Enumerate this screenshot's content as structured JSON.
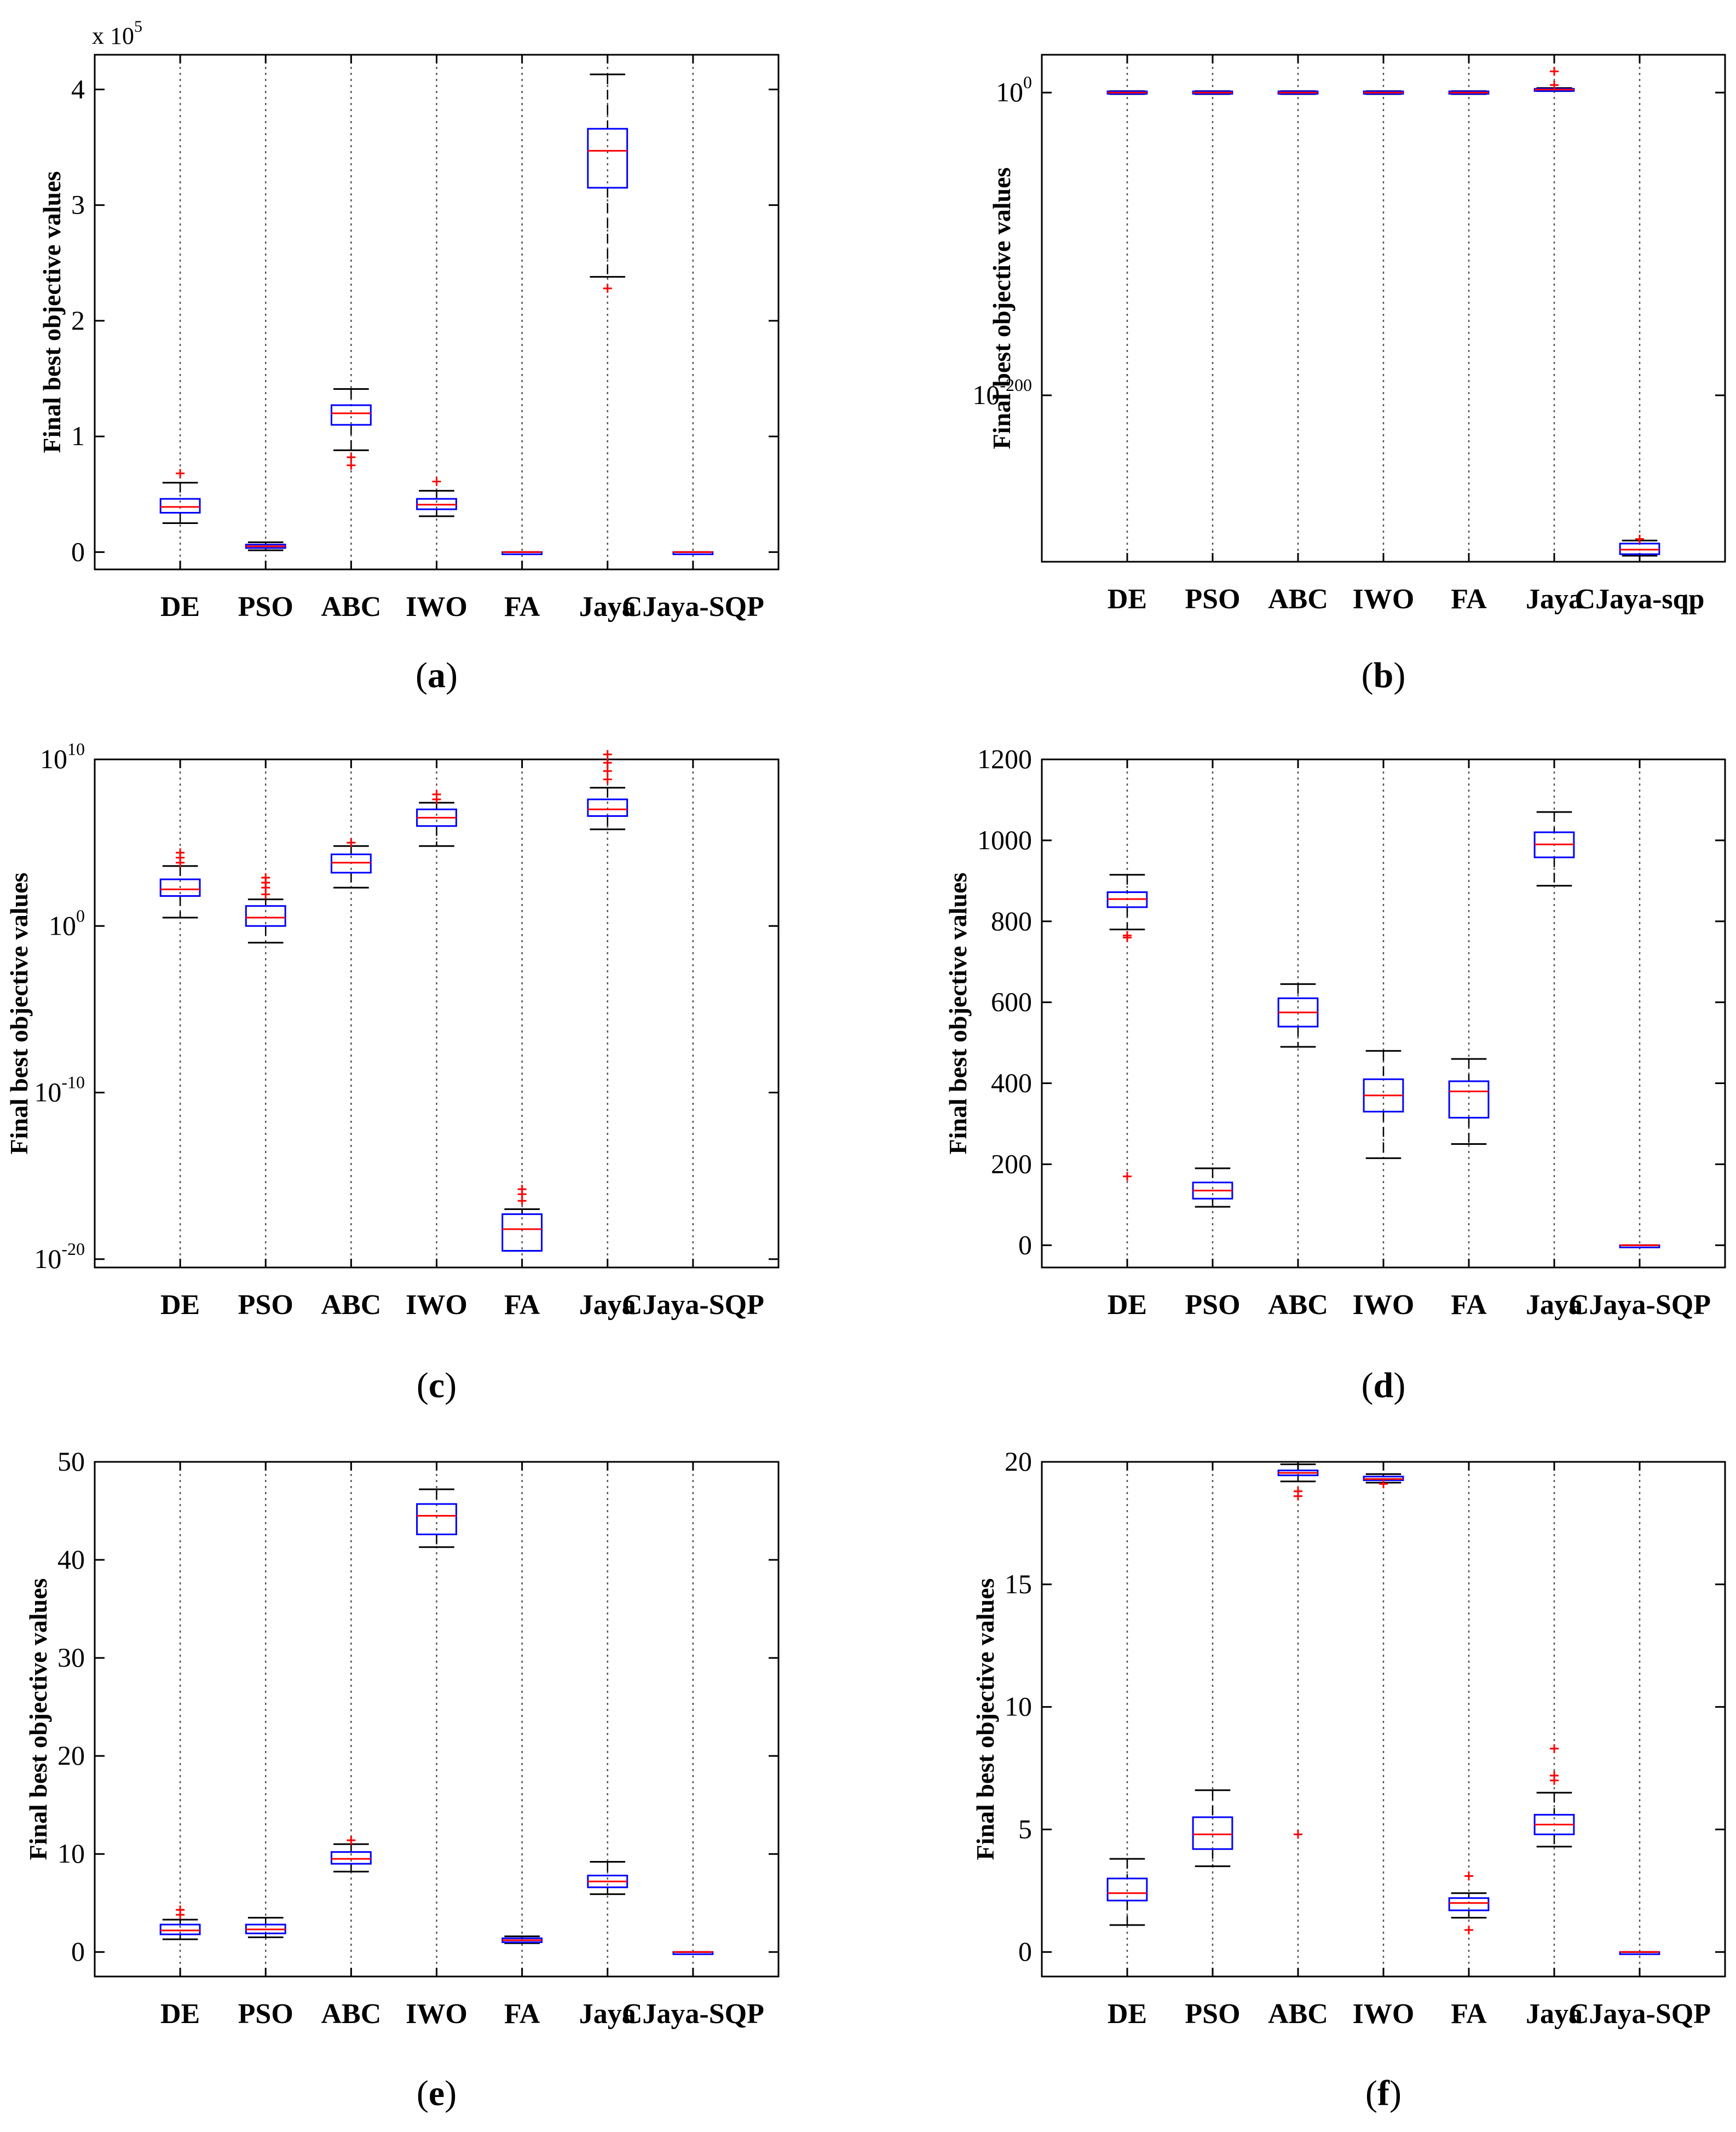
{
  "figure": {
    "colors": {
      "box": "#0000ff",
      "median": "#ff0000",
      "whisker": "#000000",
      "outlier": "#ff0000",
      "grid": "#555555",
      "axes": "#000000"
    }
  },
  "chart_data": [
    {
      "panel": "a",
      "panel_label": "(a)",
      "type": "box",
      "ylabel": "Final best objective values",
      "scale": "linear",
      "ylim": [
        -15000,
        430000
      ],
      "yticks": [
        0,
        100000,
        200000,
        300000,
        400000
      ],
      "ytick_labels": [
        "0",
        "1",
        "2",
        "3",
        "4"
      ],
      "multiplier_base": "x 10",
      "multiplier_exp": "5",
      "categories": [
        "DE",
        "PSO",
        "ABC",
        "IWO",
        "FA",
        "Jaya",
        "CJaya-SQP"
      ],
      "boxes": [
        {
          "low": 25000,
          "q1": 34000,
          "median": 39000,
          "q3": 46000,
          "high": 60000,
          "outliers": [
            68000
          ]
        },
        {
          "low": 1500,
          "q1": 3500,
          "median": 5000,
          "q3": 6500,
          "high": 8500,
          "outliers": []
        },
        {
          "low": 88000,
          "q1": 110000,
          "median": 120000,
          "q3": 127000,
          "high": 141000,
          "outliers": [
            75000,
            82000
          ]
        },
        {
          "low": 31000,
          "q1": 37000,
          "median": 41000,
          "q3": 46000,
          "high": 53000,
          "outliers": [
            61000
          ]
        },
        {
          "low": 0,
          "q1": 0,
          "median": 0,
          "q3": 0,
          "high": 0,
          "outliers": []
        },
        {
          "low": 238000,
          "q1": 315000,
          "median": 347000,
          "q3": 366000,
          "high": 413000,
          "outliers": [
            228000
          ]
        },
        {
          "low": 0,
          "q1": 0,
          "median": 0,
          "q3": 0,
          "high": 0,
          "outliers": []
        }
      ]
    },
    {
      "panel": "b",
      "panel_label": "(b)",
      "type": "box",
      "ylabel": "Final best objective values",
      "scale": "log10",
      "ylim": [
        -310,
        25
      ],
      "yticks": [
        0,
        -200
      ],
      "ytick_labels": [
        "10^0",
        "10^-200"
      ],
      "categories": [
        "DE",
        "PSO",
        "ABC",
        "IWO",
        "FA",
        "Jaya",
        "CJaya-sqp"
      ],
      "boxes": [
        {
          "low": -1,
          "q1": -0.8,
          "median": 0,
          "q3": 0.8,
          "high": 1,
          "outliers": []
        },
        {
          "low": -1,
          "q1": -0.8,
          "median": 0,
          "q3": 0.8,
          "high": 1,
          "outliers": []
        },
        {
          "low": -1,
          "q1": -0.8,
          "median": 0,
          "q3": 0.8,
          "high": 1,
          "outliers": []
        },
        {
          "low": -1,
          "q1": -0.8,
          "median": 0,
          "q3": 0.8,
          "high": 1,
          "outliers": []
        },
        {
          "low": -1,
          "q1": -0.8,
          "median": 0,
          "q3": 0.8,
          "high": 1,
          "outliers": []
        },
        {
          "low": 1,
          "q1": 1.5,
          "median": 2,
          "q3": 2.5,
          "high": 3,
          "outliers": [
            5,
            14
          ]
        },
        {
          "low": -306,
          "q1": -305,
          "median": -302,
          "q3": -298,
          "high": -296,
          "outliers": [
            -295
          ]
        }
      ]
    },
    {
      "panel": "c",
      "panel_label": "(c)",
      "type": "box",
      "ylabel": "Final best objective values",
      "scale": "log10",
      "ylim": [
        -20.5,
        10
      ],
      "yticks": [
        10,
        0,
        -10,
        -20
      ],
      "ytick_labels": [
        "10^10",
        "10^0",
        "10^-10",
        "10^-20"
      ],
      "categories": [
        "DE",
        "PSO",
        "ABC",
        "IWO",
        "FA",
        "Jaya",
        "CJaya-SQP"
      ],
      "boxes": [
        {
          "low": 0.5,
          "q1": 1.8,
          "median": 2.2,
          "q3": 2.8,
          "high": 3.6,
          "outliers": [
            3.8,
            4.1,
            4.4
          ]
        },
        {
          "low": -1,
          "q1": 0,
          "median": 0.5,
          "q3": 1.2,
          "high": 1.6,
          "outliers": [
            1.9,
            2.3,
            2.6,
            2.9
          ]
        },
        {
          "low": 2.3,
          "q1": 3.2,
          "median": 3.8,
          "q3": 4.3,
          "high": 4.8,
          "outliers": [
            5.0
          ]
        },
        {
          "low": 4.8,
          "q1": 6.0,
          "median": 6.5,
          "q3": 7.0,
          "high": 7.4,
          "outliers": [
            7.6,
            7.9
          ]
        },
        {
          "low": -19.5,
          "q1": -19.5,
          "median": -18.2,
          "q3": -17.3,
          "high": -17.0,
          "outliers": [
            -16.5,
            -16.1,
            -15.8
          ]
        },
        {
          "low": 5.8,
          "q1": 6.6,
          "median": 7.0,
          "q3": 7.6,
          "high": 8.3,
          "outliers": [
            8.8,
            9.3,
            9.8,
            10.3
          ]
        },
        {
          "low": null,
          "q1": null,
          "median": null,
          "q3": null,
          "high": null,
          "outliers": []
        }
      ]
    },
    {
      "panel": "d",
      "panel_label": "(d)",
      "type": "box",
      "ylabel": "Final best objective values",
      "scale": "linear",
      "ylim": [
        -55,
        1200
      ],
      "yticks": [
        0,
        200,
        400,
        600,
        800,
        1000,
        1200
      ],
      "ytick_labels": [
        "0",
        "200",
        "400",
        "600",
        "800",
        "1000",
        "1200"
      ],
      "categories": [
        "DE",
        "PSO",
        "ABC",
        "IWO",
        "FA",
        "Jaya",
        "CJaya-SQP"
      ],
      "boxes": [
        {
          "low": 780,
          "q1": 835,
          "median": 855,
          "q3": 872,
          "high": 915,
          "outliers": [
            760,
            765,
            170
          ]
        },
        {
          "low": 95,
          "q1": 115,
          "median": 135,
          "q3": 155,
          "high": 190,
          "outliers": []
        },
        {
          "low": 490,
          "q1": 540,
          "median": 575,
          "q3": 610,
          "high": 645,
          "outliers": []
        },
        {
          "low": 215,
          "q1": 330,
          "median": 370,
          "q3": 410,
          "high": 480,
          "outliers": []
        },
        {
          "low": 250,
          "q1": 315,
          "median": 380,
          "q3": 405,
          "high": 460,
          "outliers": []
        },
        {
          "low": 888,
          "q1": 958,
          "median": 990,
          "q3": 1020,
          "high": 1070,
          "outliers": []
        },
        {
          "low": 0,
          "q1": 0,
          "median": 0,
          "q3": 0,
          "high": 0,
          "outliers": []
        }
      ]
    },
    {
      "panel": "e",
      "panel_label": "(e)",
      "type": "box",
      "ylabel": "Final best objective values",
      "scale": "linear",
      "ylim": [
        -2.5,
        50
      ],
      "yticks": [
        0,
        10,
        20,
        30,
        40,
        50
      ],
      "ytick_labels": [
        "0",
        "10",
        "20",
        "30",
        "40",
        "50"
      ],
      "categories": [
        "DE",
        "PSO",
        "ABC",
        "IWO",
        "FA",
        "Jaya",
        "CJaya-SQP"
      ],
      "boxes": [
        {
          "low": 1.3,
          "q1": 1.8,
          "median": 2.2,
          "q3": 2.8,
          "high": 3.3,
          "outliers": [
            3.8,
            4.3
          ]
        },
        {
          "low": 1.5,
          "q1": 1.9,
          "median": 2.3,
          "q3": 2.8,
          "high": 3.5,
          "outliers": []
        },
        {
          "low": 8.2,
          "q1": 9.0,
          "median": 9.5,
          "q3": 10.2,
          "high": 11.0,
          "outliers": [
            11.4
          ]
        },
        {
          "low": 41.3,
          "q1": 42.6,
          "median": 44.5,
          "q3": 45.7,
          "high": 47.2,
          "outliers": []
        },
        {
          "low": 0.9,
          "q1": 1.0,
          "median": 1.2,
          "q3": 1.4,
          "high": 1.6,
          "outliers": []
        },
        {
          "low": 5.9,
          "q1": 6.6,
          "median": 7.2,
          "q3": 7.8,
          "high": 9.2,
          "outliers": []
        },
        {
          "low": 0,
          "q1": 0,
          "median": 0,
          "q3": 0,
          "high": 0,
          "outliers": []
        }
      ]
    },
    {
      "panel": "f",
      "panel_label": "(f)",
      "type": "box",
      "ylabel": "Final best objective values",
      "scale": "linear",
      "ylim": [
        -1,
        20
      ],
      "yticks": [
        0,
        5,
        10,
        15,
        20
      ],
      "ytick_labels": [
        "0",
        "5",
        "10",
        "15",
        "20"
      ],
      "categories": [
        "DE",
        "PSO",
        "ABC",
        "IWO",
        "FA",
        "Jaya",
        "CJaya-SQP"
      ],
      "boxes": [
        {
          "low": 1.1,
          "q1": 2.1,
          "median": 2.4,
          "q3": 3.0,
          "high": 3.8,
          "outliers": []
        },
        {
          "low": 3.5,
          "q1": 4.2,
          "median": 4.8,
          "q3": 5.5,
          "high": 6.6,
          "outliers": []
        },
        {
          "low": 19.2,
          "q1": 19.45,
          "median": 19.55,
          "q3": 19.65,
          "high": 19.9,
          "outliers": [
            18.6,
            18.8,
            4.8
          ]
        },
        {
          "low": 19.15,
          "q1": 19.25,
          "median": 19.3,
          "q3": 19.4,
          "high": 19.5,
          "outliers": [
            19.1
          ]
        },
        {
          "low": 1.4,
          "q1": 1.7,
          "median": 2.0,
          "q3": 2.2,
          "high": 2.4,
          "outliers": [
            0.9,
            3.1
          ]
        },
        {
          "low": 4.3,
          "q1": 4.8,
          "median": 5.2,
          "q3": 5.6,
          "high": 6.5,
          "outliers": [
            7.0,
            7.2,
            8.3
          ]
        },
        {
          "low": 0,
          "q1": 0,
          "median": 0,
          "q3": 0,
          "high": 0,
          "outliers": []
        }
      ]
    }
  ]
}
